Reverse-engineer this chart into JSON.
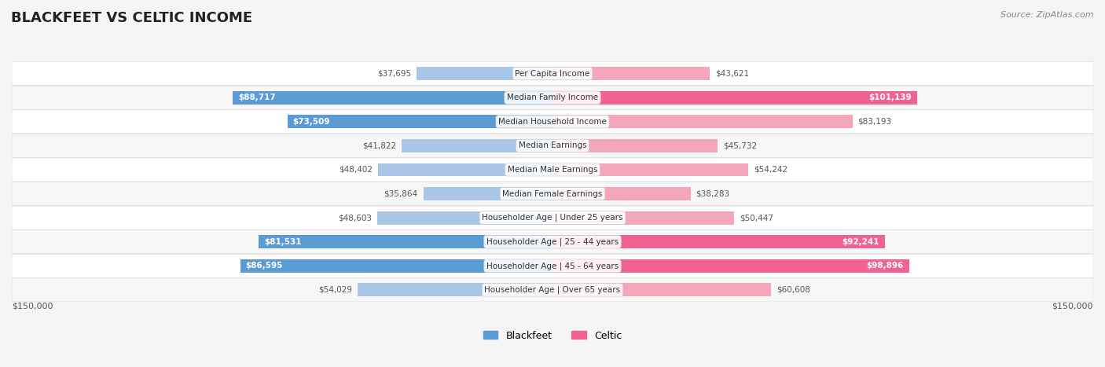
{
  "title": "BLACKFEET VS CELTIC INCOME",
  "source": "Source: ZipAtlas.com",
  "categories": [
    "Per Capita Income",
    "Median Family Income",
    "Median Household Income",
    "Median Earnings",
    "Median Male Earnings",
    "Median Female Earnings",
    "Householder Age | Under 25 years",
    "Householder Age | 25 - 44 years",
    "Householder Age | 45 - 64 years",
    "Householder Age | Over 65 years"
  ],
  "blackfeet_values": [
    37695,
    88717,
    73509,
    41822,
    48402,
    35864,
    48603,
    81531,
    86595,
    54029
  ],
  "celtic_values": [
    43621,
    101139,
    83193,
    45732,
    54242,
    38283,
    50447,
    92241,
    98896,
    60608
  ],
  "blackfeet_labels": [
    "$37,695",
    "$88,717",
    "$73,509",
    "$41,822",
    "$48,402",
    "$35,864",
    "$48,603",
    "$81,531",
    "$86,595",
    "$54,029"
  ],
  "celtic_labels": [
    "$43,621",
    "$101,139",
    "$83,193",
    "$45,732",
    "$54,242",
    "$38,283",
    "$50,447",
    "$92,241",
    "$98,896",
    "$60,608"
  ],
  "max_val": 150000,
  "blackfeet_color_strong": "#5b9bd5",
  "blackfeet_color_light": "#a9c6e8",
  "celtic_color_strong": "#f06292",
  "celtic_color_light": "#f4a7bb",
  "bg_color": "#f5f5f5",
  "row_bg": "#ffffff",
  "row_bg_alt": "#f0f0f0"
}
